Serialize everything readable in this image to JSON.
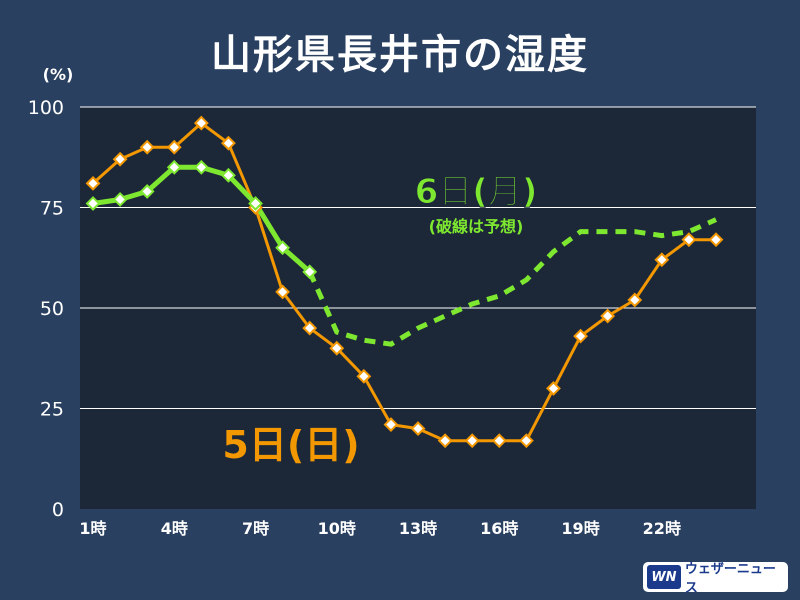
{
  "title": "山形県長井市の湿度",
  "logo": {
    "mark": "WN",
    "text": "ウェザーニュース"
  },
  "chart_data": {
    "type": "line",
    "title": "山形県長井市の湿度",
    "ylabel": "(%)",
    "xlabel": "",
    "ylim": [
      0,
      100
    ],
    "yticks": [
      0,
      25,
      50,
      75,
      100
    ],
    "xlim": [
      1,
      24
    ],
    "xticks": [
      {
        "x": 1,
        "label": "1時"
      },
      {
        "x": 4,
        "label": "4時"
      },
      {
        "x": 7,
        "label": "7時"
      },
      {
        "x": 10,
        "label": "10時"
      },
      {
        "x": 13,
        "label": "13時"
      },
      {
        "x": 16,
        "label": "16時"
      },
      {
        "x": 19,
        "label": "19時"
      },
      {
        "x": 22,
        "label": "22時"
      }
    ],
    "grid": true,
    "series": [
      {
        "name": "5日(日)",
        "color": "#f39800",
        "style": "solid",
        "markers": true,
        "points": [
          {
            "x": 1,
            "y": 81
          },
          {
            "x": 2,
            "y": 87
          },
          {
            "x": 3,
            "y": 90
          },
          {
            "x": 4,
            "y": 90
          },
          {
            "x": 5,
            "y": 96
          },
          {
            "x": 6,
            "y": 91
          },
          {
            "x": 7,
            "y": 75
          },
          {
            "x": 8,
            "y": 54
          },
          {
            "x": 9,
            "y": 45
          },
          {
            "x": 10,
            "y": 40
          },
          {
            "x": 11,
            "y": 33
          },
          {
            "x": 12,
            "y": 21
          },
          {
            "x": 13,
            "y": 20
          },
          {
            "x": 14,
            "y": 17
          },
          {
            "x": 15,
            "y": 17
          },
          {
            "x": 16,
            "y": 17
          },
          {
            "x": 17,
            "y": 17
          },
          {
            "x": 18,
            "y": 30
          },
          {
            "x": 19,
            "y": 43
          },
          {
            "x": 20,
            "y": 48
          },
          {
            "x": 21,
            "y": 52
          },
          {
            "x": 22,
            "y": 62
          },
          {
            "x": 23,
            "y": 67
          },
          {
            "x": 24,
            "y": 67
          }
        ]
      },
      {
        "name": "6日(月)",
        "note": "(破線は予想)",
        "color": "#7ee830",
        "style": "solid",
        "markers": true,
        "points": [
          {
            "x": 1,
            "y": 76
          },
          {
            "x": 2,
            "y": 77
          },
          {
            "x": 3,
            "y": 79
          },
          {
            "x": 4,
            "y": 85
          },
          {
            "x": 5,
            "y": 85
          },
          {
            "x": 6,
            "y": 83
          },
          {
            "x": 7,
            "y": 76
          },
          {
            "x": 8,
            "y": 65
          },
          {
            "x": 9,
            "y": 59
          }
        ]
      },
      {
        "name": "6日(月) 予想",
        "color": "#7ee830",
        "style": "dashed",
        "markers": false,
        "points": [
          {
            "x": 9,
            "y": 59
          },
          {
            "x": 10,
            "y": 44
          },
          {
            "x": 11,
            "y": 42
          },
          {
            "x": 12,
            "y": 41
          },
          {
            "x": 13,
            "y": 45
          },
          {
            "x": 14,
            "y": 48
          },
          {
            "x": 15,
            "y": 51
          },
          {
            "x": 16,
            "y": 53
          },
          {
            "x": 17,
            "y": 57
          },
          {
            "x": 18,
            "y": 64
          },
          {
            "x": 19,
            "y": 69
          },
          {
            "x": 20,
            "y": 69
          },
          {
            "x": 21,
            "y": 69
          },
          {
            "x": 22,
            "y": 68
          },
          {
            "x": 23,
            "y": 69
          },
          {
            "x": 24,
            "y": 72
          }
        ]
      }
    ],
    "annotations": [
      {
        "id": "label-day5",
        "text": "5日(日)",
        "color": "#f39800"
      },
      {
        "id": "label-day6",
        "text": "6日(月)",
        "color": "#7ee830"
      },
      {
        "id": "label-day6-note",
        "text": "(破線は予想)",
        "color": "#7ee830"
      }
    ]
  }
}
